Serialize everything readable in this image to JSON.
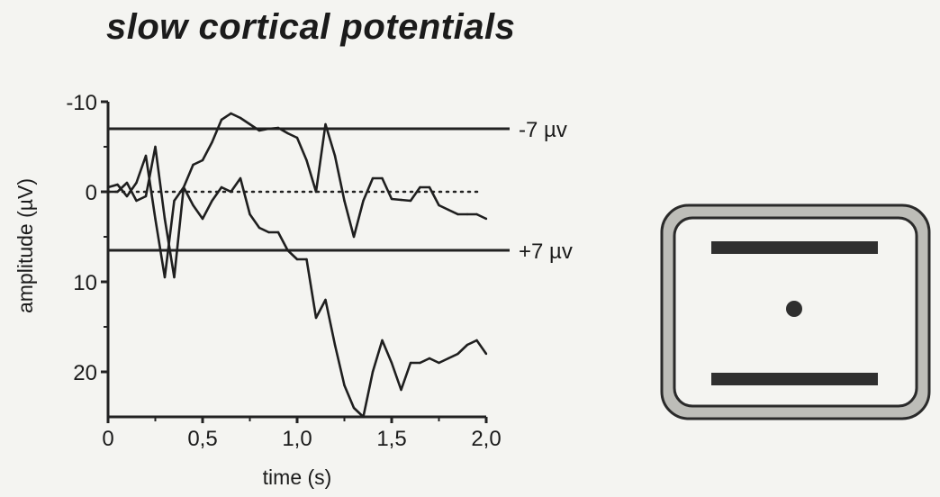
{
  "chart_data": {
    "type": "line",
    "title": "slow cortical potentials",
    "xlabel": "time (s)",
    "ylabel": "amplitude (µV)",
    "xlim": [
      0,
      2.0
    ],
    "ylim": [
      -10,
      25
    ],
    "y_inverted": true,
    "x_ticks": [
      "0",
      "0,5",
      "1,0",
      "1,5",
      "2,0"
    ],
    "y_ticks": [
      "-10",
      "0",
      "10",
      "20"
    ],
    "reference_lines": [
      {
        "y": -7,
        "label": "-7 µv",
        "style": "solid"
      },
      {
        "y": 0,
        "label": "",
        "style": "dotted"
      },
      {
        "y": 6.5,
        "label": "+7 µv",
        "style": "solid"
      }
    ],
    "series": [
      {
        "x": [
          0,
          0.05,
          0.1,
          0.15,
          0.2,
          0.25,
          0.3,
          0.35,
          0.4,
          0.45,
          0.5,
          0.55,
          0.6,
          0.65,
          0.7,
          0.75,
          0.8,
          0.85,
          0.9,
          0.95,
          1.0,
          1.05,
          1.1,
          1.15,
          1.2,
          1.25,
          1.3,
          1.35,
          1.4,
          1.45,
          1.5,
          1.55,
          1.6,
          1.65,
          1.7,
          1.75,
          1.8,
          1.85,
          1.9,
          1.95,
          2.0
        ],
        "values": [
          -0.5,
          -0.8,
          0.5,
          -1,
          -4,
          3,
          9.5,
          1,
          -0.5,
          -3,
          -3.5,
          -5.5,
          -8,
          -8.7,
          -8.2,
          -7.5,
          -6.8,
          -7,
          -7.1,
          -6.5,
          -6,
          -3.5,
          0,
          -7.5,
          -4,
          1,
          5,
          1,
          -1.5,
          -1.5,
          0.8,
          0.9,
          1,
          -0.5,
          -0.5,
          1.5,
          2,
          2.5,
          2.5,
          2.5,
          3
        ]
      },
      {
        "x": [
          0,
          0.05,
          0.1,
          0.15,
          0.2,
          0.25,
          0.3,
          0.35,
          0.4,
          0.45,
          0.5,
          0.55,
          0.6,
          0.65,
          0.7,
          0.75,
          0.8,
          0.85,
          0.9,
          0.95,
          1.0,
          1.05,
          1.1,
          1.15,
          1.2,
          1.25,
          1.3,
          1.35,
          1.4,
          1.45,
          1.5,
          1.55,
          1.6,
          1.65,
          1.7,
          1.75,
          1.8,
          1.85,
          1.9,
          1.95,
          2.0
        ],
        "values": [
          0,
          0,
          -1,
          1,
          0.5,
          -5,
          3,
          9.5,
          -0.5,
          1.5,
          3,
          1,
          -0.5,
          0,
          -1.5,
          2.5,
          4,
          4.5,
          4.5,
          6.5,
          7.5,
          7.5,
          14,
          12,
          17,
          21.5,
          24,
          25,
          20,
          16.5,
          19,
          22,
          19,
          19,
          18.5,
          19,
          18.5,
          18,
          17,
          16.5,
          18
        ]
      }
    ]
  },
  "stimulus_panel": {
    "description_shapes": [
      "top-bar",
      "center-dot",
      "bottom-bar"
    ]
  }
}
